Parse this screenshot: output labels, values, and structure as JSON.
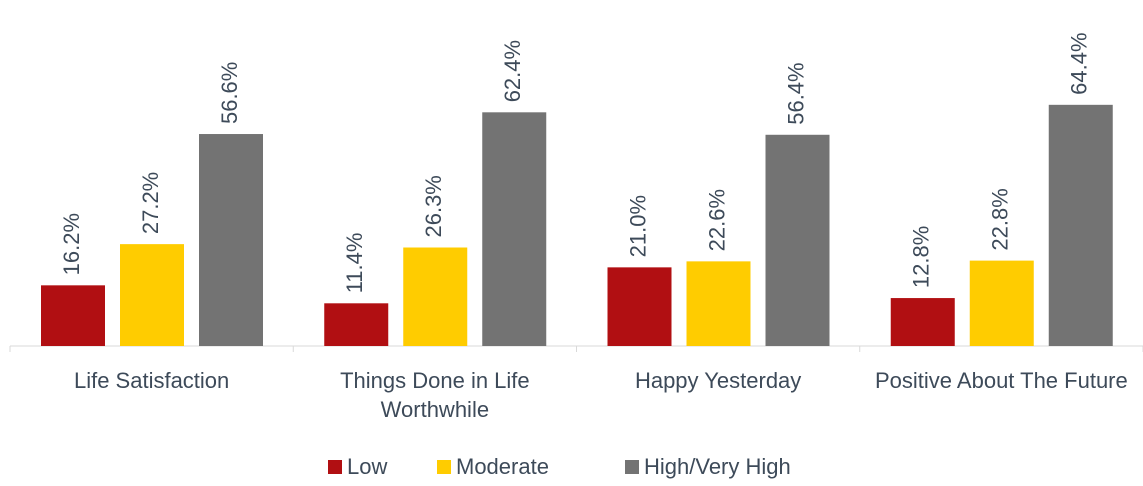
{
  "chart_data": {
    "type": "bar",
    "categories": [
      "Life Satisfaction",
      "Things Done in Life Worthwhile",
      "Happy Yesterday",
      "Positive About The Future"
    ],
    "series": [
      {
        "name": "Low",
        "color": "#b10f12",
        "values": [
          16.2,
          11.4,
          21.0,
          12.8
        ],
        "value_labels": [
          "16.2%",
          "11.4%",
          "21.0%",
          "12.8%"
        ]
      },
      {
        "name": "Moderate",
        "color": "#ffcc00",
        "values": [
          27.2,
          26.3,
          22.6,
          22.8
        ],
        "value_labels": [
          "27.2%",
          "26.3%",
          "22.6%",
          "22.8%"
        ]
      },
      {
        "name": "High/Very High",
        "color": "#737373",
        "values": [
          56.6,
          62.4,
          56.4,
          64.4
        ],
        "value_labels": [
          "56.6%",
          "62.4%",
          "56.4%",
          "64.4%"
        ]
      }
    ],
    "legend": "bottom"
  }
}
